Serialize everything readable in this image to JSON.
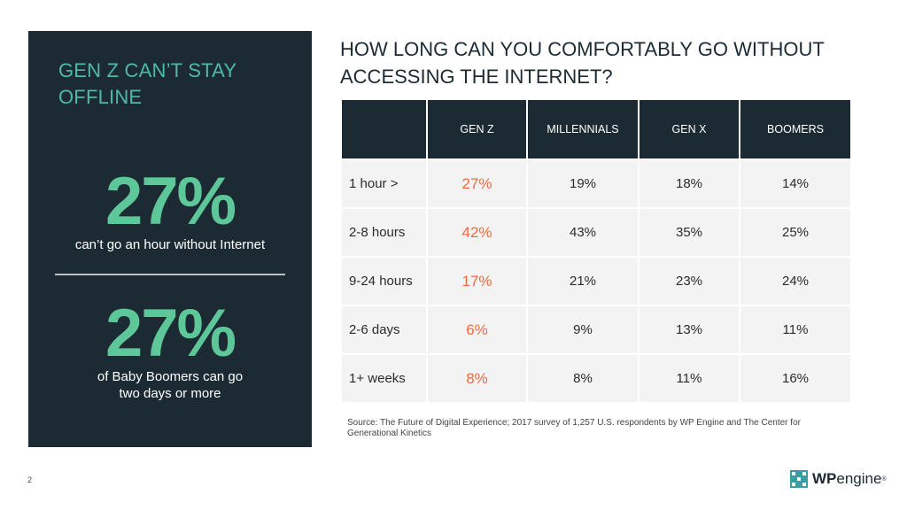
{
  "sidebar": {
    "title": "GEN Z CAN’T STAY OFFLINE",
    "stat1": {
      "value": "27%",
      "caption": "can’t go an hour without Internet"
    },
    "stat2": {
      "value": "27%",
      "caption_line1": "of Baby Boomers can go",
      "caption_line2": "two days or more"
    }
  },
  "main": {
    "title": "HOW LONG CAN YOU COMFORTABLY GO WITHOUT ACCESSING THE INTERNET?",
    "table": {
      "headers": [
        "",
        "GEN Z",
        "MILLENNIALS",
        "GEN X",
        "BOOMERS"
      ],
      "rows": [
        {
          "label": "1 hour >",
          "values": [
            "27%",
            "19%",
            "18%",
            "14%"
          ]
        },
        {
          "label": "2-8 hours",
          "values": [
            "42%",
            "43%",
            "35%",
            "25%"
          ]
        },
        {
          "label": "9-24 hours",
          "values": [
            "17%",
            "21%",
            "23%",
            "24%"
          ]
        },
        {
          "label": "2-6 days",
          "values": [
            "6%",
            "9%",
            "13%",
            "11%"
          ]
        },
        {
          "label": "1+ weeks",
          "values": [
            "8%",
            "8%",
            "11%",
            "16%"
          ]
        }
      ]
    },
    "source": "Source: The Future of Digital Experience; 2017 survey of 1,257 U.S. respondents by WP Engine and The Center for Generational Kinetics"
  },
  "footer": {
    "page_number": "2",
    "logo": {
      "wp": "WP",
      "engine": "engine",
      "mark": "®",
      "icon": "wp-engine-logo-icon"
    }
  },
  "colors": {
    "panel": "#1c2b33",
    "accent_teal": "#4fb8a8",
    "accent_green": "#5ec79a",
    "highlight": "#f06a3f"
  }
}
